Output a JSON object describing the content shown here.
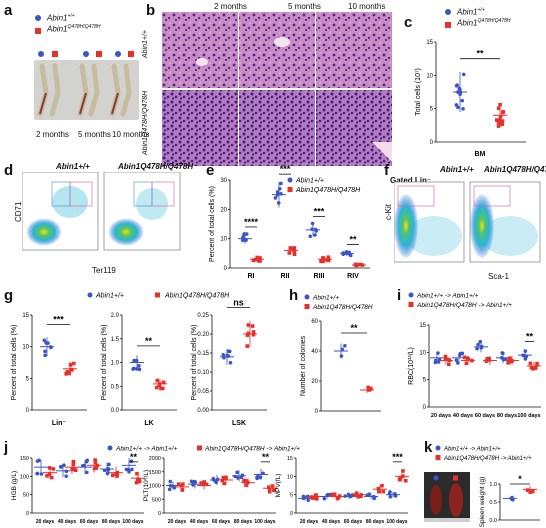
{
  "colors": {
    "wt": "#3a55c8",
    "mut": "#e8302a"
  },
  "panels": {
    "a": {
      "label": "a",
      "legend_wt": "Abin1",
      "legend_wt_sup": "+/+",
      "legend_mut": "Abin1",
      "legend_mut_sup": "Q478H/Q478H",
      "times": [
        "2 months",
        "5 months",
        "10 months"
      ]
    },
    "b": {
      "label": "b",
      "cols": [
        "2 months",
        "5 months",
        "10 months"
      ],
      "row_wt": "Abin1+/+",
      "row_mut": "Abin1Q478H/Q478H"
    },
    "c": {
      "label": "c",
      "legend_wt": "Abin1",
      "legend_wt_sup": "+/+",
      "legend_mut": "Abin1",
      "legend_mut_sup": "Q478H/Q478H",
      "ylabel": "Total cells (10⁷)",
      "xlabel": "BM",
      "sig": "**",
      "yticks": [
        "0",
        "5",
        "10",
        "15"
      ]
    },
    "d": {
      "label": "d",
      "title_wt": "Abin1+/+",
      "title_mut": "Abin1Q478H/Q478H",
      "ylabel": "CD71",
      "xlabel": "Ter119"
    },
    "e": {
      "label": "e",
      "legend_wt": "Abin1+/+",
      "legend_mut": "Abin1Q478H/Q478H",
      "ylabel": "Percent of total cells (%)",
      "cats": [
        "RI",
        "RII",
        "RIII",
        "RIV"
      ],
      "sigs": [
        "****",
        "***",
        "***",
        "**"
      ],
      "yticks": [
        "0",
        "10",
        "20",
        "30"
      ]
    },
    "f": {
      "label": "f",
      "gate": "Gated Lin⁻",
      "title_wt": "Abin1+/+",
      "title_mut": "Abin1Q478H/Q478H",
      "ylabel": "c-Kit",
      "xlabel": "Sca-1"
    },
    "g": {
      "label": "g",
      "legend_wt": "Abin1+/+",
      "legend_mut": "Abin1Q478H/Q478H",
      "sub": [
        {
          "ylabel": "Percent of total cells (%)",
          "xlabel": "Lin⁻",
          "sig": "***",
          "yticks": [
            "0",
            "5",
            "10",
            "15"
          ]
        },
        {
          "ylabel": "Percent of total cells (%)",
          "xlabel": "LK",
          "sig": "**",
          "yticks": [
            "0.0",
            "0.5",
            "1.0",
            "1.5",
            "2.0"
          ]
        },
        {
          "ylabel": "Percent of total cells (%)",
          "xlabel": "LSK",
          "sig": "ns",
          "yticks": [
            "0.00",
            "0.05",
            "0.10",
            "0.15",
            "0.20",
            "0.25"
          ]
        }
      ]
    },
    "h": {
      "label": "h",
      "legend_wt": "Abin1+/+",
      "legend_mut": "Abin1Q478H/Q478H",
      "ylabel": "Number of colonies",
      "sig": "**",
      "yticks": [
        "0",
        "20",
        "40",
        "60"
      ]
    },
    "i": {
      "label": "i",
      "legend_wt": "Abin1+/+ -> Abin1+/+",
      "legend_mut": "Abin1Q478H/Q478H -> Abin1+/+",
      "ylabel": "RBC(10¹²/L)",
      "cats": [
        "20 days",
        "40 days",
        "60 days",
        "80 days",
        "100 days"
      ],
      "sig": "**",
      "yticks": [
        "0",
        "5",
        "10",
        "15"
      ]
    },
    "j": {
      "label": "j",
      "legend_wt": "Abin1+/+ -> Abin1+/+",
      "legend_mut": "Abin1Q478H/Q478H -> Abin1+/+",
      "cats": [
        "20 days",
        "40 days",
        "60 days",
        "80 days",
        "100 days"
      ],
      "sub": [
        {
          "ylabel": "HGB (g/L)",
          "sig": "**",
          "yticks": [
            "0",
            "50",
            "100",
            "150"
          ]
        },
        {
          "ylabel": "PLT(10⁹/L)",
          "sig": "**",
          "yticks": [
            "0",
            "500",
            "1000",
            "1500",
            "2000"
          ]
        },
        {
          "ylabel": "MPV(fL)",
          "sig": "***",
          "yticks": [
            "0",
            "5",
            "10",
            "15"
          ]
        }
      ]
    },
    "k": {
      "label": "k",
      "legend_wt": "Abin1+/+ -> Abin1+/+",
      "legend_mut": "Abin1Q478H/Q478H -> Abin1+/+",
      "ylabel": "Spleen weight (g)",
      "sig": "*",
      "yticks": [
        "0.0",
        "0.5",
        "1.0"
      ]
    }
  },
  "chart_data": [
    {
      "type": "scatter",
      "panel": "c",
      "categories": [
        "Abin1+/+",
        "Abin1Q478H/Q478H"
      ],
      "series": [
        {
          "name": "Abin1+/+",
          "values": [
            7.5
          ]
        },
        {
          "name": "Abin1Q478H/Q478H",
          "values": [
            4.0
          ]
        }
      ],
      "ylim": [
        0,
        15
      ],
      "xlabel": "BM",
      "ylabel": "Total cells (10⁷)"
    },
    {
      "type": "scatter",
      "panel": "e",
      "categories": [
        "RI",
        "RII",
        "RIII",
        "RIV"
      ],
      "series": [
        {
          "name": "Abin1+/+",
          "values": [
            10,
            25,
            13,
            5
          ]
        },
        {
          "name": "Abin1Q478H/Q478H",
          "values": [
            3,
            6,
            3,
            1
          ]
        }
      ],
      "ylim": [
        0,
        30
      ],
      "ylabel": "Percent of total cells (%)"
    },
    {
      "type": "scatter",
      "panel": "g-Lin",
      "categories": [
        "Lin⁻"
      ],
      "series": [
        {
          "name": "Abin1+/+",
          "values": [
            10
          ]
        },
        {
          "name": "Abin1Q478H/Q478H",
          "values": [
            6.5
          ]
        }
      ],
      "ylim": [
        0,
        15
      ]
    },
    {
      "type": "scatter",
      "panel": "g-LK",
      "categories": [
        "LK"
      ],
      "series": [
        {
          "name": "Abin1+/+",
          "values": [
            1.0
          ]
        },
        {
          "name": "Abin1Q478H/Q478H",
          "values": [
            0.55
          ]
        }
      ],
      "ylim": [
        0,
        2.0
      ]
    },
    {
      "type": "scatter",
      "panel": "g-LSK",
      "categories": [
        "LSK"
      ],
      "series": [
        {
          "name": "Abin1+/+",
          "values": [
            0.14
          ]
        },
        {
          "name": "Abin1Q478H/Q478H",
          "values": [
            0.2
          ]
        }
      ],
      "ylim": [
        0,
        0.25
      ]
    },
    {
      "type": "scatter",
      "panel": "h",
      "categories": [
        "Abin1+/+",
        "Abin1Q478H/Q478H"
      ],
      "series": [
        {
          "name": "Abin1+/+",
          "values": [
            40
          ]
        },
        {
          "name": "Abin1Q478H/Q478H",
          "values": [
            14
          ]
        }
      ],
      "ylim": [
        0,
        60
      ]
    },
    {
      "type": "scatter",
      "panel": "i",
      "categories": [
        "20 days",
        "40 days",
        "60 days",
        "80 days",
        "100 days"
      ],
      "series": [
        {
          "name": "Abin1+/+ -> Abin1+/+",
          "values": [
            9,
            9,
            11,
            9,
            9.5
          ]
        },
        {
          "name": "Abin1Q478H/Q478H -> Abin1+/+",
          "values": [
            8.5,
            8.5,
            8.5,
            8.5,
            7.5
          ]
        }
      ],
      "ylim": [
        0,
        15
      ],
      "ylabel": "RBC(10¹²/L)"
    },
    {
      "type": "scatter",
      "panel": "j-HGB",
      "categories": [
        "20 days",
        "40 days",
        "60 days",
        "80 days",
        "100 days"
      ],
      "series": [
        {
          "name": "Abin1+/+ -> Abin1+/+",
          "values": [
            125,
            115,
            125,
            120,
            130
          ]
        },
        {
          "name": "Abin1Q478H/Q478H -> Abin1+/+",
          "values": [
            110,
            125,
            130,
            110,
            95
          ]
        }
      ],
      "ylim": [
        0,
        150
      ],
      "ylabel": "HGB (g/L)"
    },
    {
      "type": "scatter",
      "panel": "j-PLT",
      "categories": [
        "20 days",
        "40 days",
        "60 days",
        "80 days",
        "100 days"
      ],
      "series": [
        {
          "name": "Abin1+/+ -> Abin1+/+",
          "values": [
            1000,
            1050,
            1200,
            1350,
            1400
          ]
        },
        {
          "name": "Abin1Q478H/Q478H -> Abin1+/+",
          "values": [
            950,
            1000,
            1200,
            1100,
            900
          ]
        }
      ],
      "ylim": [
        0,
        2000
      ],
      "ylabel": "PLT(10⁹/L)"
    },
    {
      "type": "scatter",
      "panel": "j-MPV",
      "categories": [
        "20 days",
        "40 days",
        "60 days",
        "80 days",
        "100 days"
      ],
      "series": [
        {
          "name": "Abin1+/+ -> Abin1+/+",
          "values": [
            4,
            4.5,
            4.5,
            4.5,
            5
          ]
        },
        {
          "name": "Abin1Q478H/Q478H -> Abin1+/+",
          "values": [
            4.5,
            4.5,
            5,
            6.5,
            10
          ]
        }
      ],
      "ylim": [
        0,
        15
      ],
      "ylabel": "MPV(fL)"
    },
    {
      "type": "scatter",
      "panel": "k",
      "categories": [
        "Abin1+/+ -> Abin1+/+",
        "Abin1Q478H/Q478H -> Abin1+/+"
      ],
      "series": [
        {
          "name": "Abin1+/+ -> Abin1+/+",
          "values": [
            0.6
          ]
        },
        {
          "name": "Abin1Q478H/Q478H -> Abin1+/+",
          "values": [
            0.85
          ]
        }
      ],
      "ylim": [
        0,
        1.0
      ],
      "ylabel": "Spleen weight (g)"
    }
  ]
}
